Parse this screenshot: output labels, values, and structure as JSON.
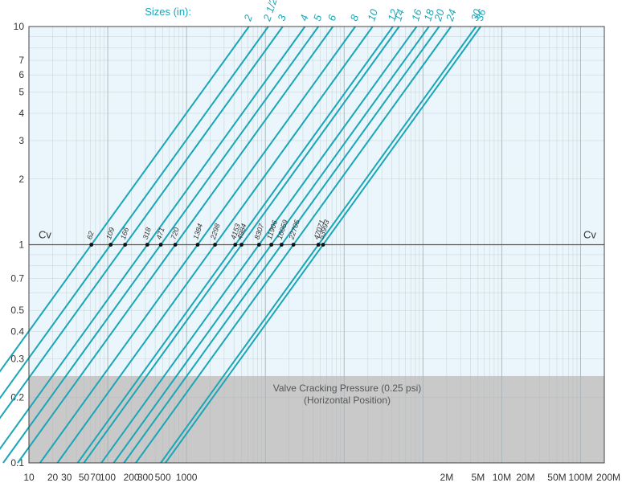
{
  "chart_data": {
    "type": "line",
    "x_scale": "log",
    "y_scale": "log",
    "xlim": [
      10,
      200000000
    ],
    "ylim": [
      0.1,
      10
    ],
    "x_tick_labels": [
      {
        "value": 10,
        "label": "10"
      },
      {
        "value": 20,
        "label": "20"
      },
      {
        "value": 30,
        "label": "30"
      },
      {
        "value": 50,
        "label": "50"
      },
      {
        "value": 70,
        "label": "70"
      },
      {
        "value": 100,
        "label": "100"
      },
      {
        "value": 200,
        "label": "200"
      },
      {
        "value": 300,
        "label": "300"
      },
      {
        "value": 500,
        "label": "500"
      },
      {
        "value": 1000,
        "label": "1000"
      },
      {
        "value": 2000000,
        "label": "2M"
      },
      {
        "value": 5000000,
        "label": "5M"
      },
      {
        "value": 10000000,
        "label": "10M"
      },
      {
        "value": 20000000,
        "label": "20M"
      },
      {
        "value": 50000000,
        "label": "50M"
      },
      {
        "value": 100000000,
        "label": "100M"
      },
      {
        "value": 200000000,
        "label": "200M"
      }
    ],
    "y_tick_labels": [
      {
        "value": 10,
        "label": "10"
      },
      {
        "value": 7,
        "label": "7"
      },
      {
        "value": 6,
        "label": "6"
      },
      {
        "value": 5,
        "label": "5"
      },
      {
        "value": 4,
        "label": "4"
      },
      {
        "value": 3,
        "label": "3"
      },
      {
        "value": 2,
        "label": "2"
      },
      {
        "value": 1,
        "label": "1"
      },
      {
        "value": 0.7,
        "label": "0.7"
      },
      {
        "value": 0.5,
        "label": "0.5"
      },
      {
        "value": 0.4,
        "label": "0.4"
      },
      {
        "value": 0.3,
        "label": "0.3"
      },
      {
        "value": 0.2,
        "label": "0.2"
      },
      {
        "value": 0.1,
        "label": "0.1"
      }
    ],
    "sizes_header": "Sizes (in):",
    "cv_axis_label": "Cv",
    "reference_line_y": 1,
    "shaded_band": {
      "y_min": 0.1,
      "y_max": 0.25,
      "label_line1": "Valve Cracking Pressure (0.25 psi)",
      "label_line2": "(Horizontal Position)"
    },
    "series": [
      {
        "size": "2",
        "cv": 62
      },
      {
        "size": "2 1/2",
        "cv": 109
      },
      {
        "size": "3",
        "cv": 166
      },
      {
        "size": "4",
        "cv": 318
      },
      {
        "size": "5",
        "cv": 471
      },
      {
        "size": "6",
        "cv": 720
      },
      {
        "size": "8",
        "cv": 1384
      },
      {
        "size": "10",
        "cv": 2298
      },
      {
        "size": "12",
        "cv": 4153
      },
      {
        "size": "14",
        "cv": 4984
      },
      {
        "size": "16",
        "cv": 8307
      },
      {
        "size": "18",
        "cv": 11906
      },
      {
        "size": "20",
        "cv": 16059
      },
      {
        "size": "24",
        "cv": 22705
      },
      {
        "size": "30",
        "cv": 47071
      },
      {
        "size": "36",
        "cv": 53993
      }
    ],
    "grid": true,
    "colors": {
      "line": "#1aa6b7",
      "plot_background": "#eaf6fb",
      "band": "#c9c9c9",
      "grid": "#aab4b8",
      "text": "#333333",
      "size_label": "#1aa6b7"
    }
  }
}
